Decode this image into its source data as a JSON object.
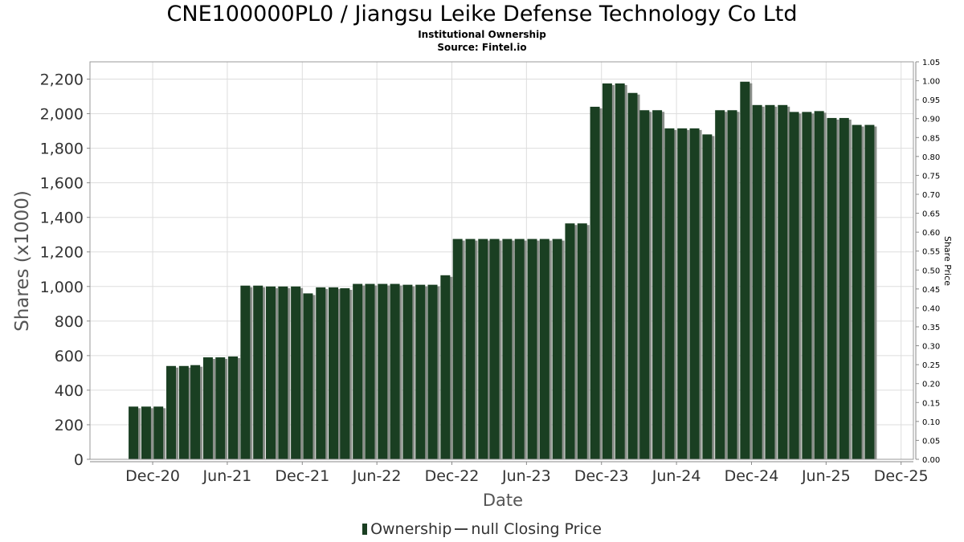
{
  "chart_data": {
    "type": "bar",
    "title": "CNE100000PL0 / Jiangsu Leike Defense Technology Co Ltd",
    "subtitle": [
      "Institutional Ownership",
      "Source: Fintel.io"
    ],
    "xlabel": "Date",
    "ylabel": "Shares (x1000)",
    "y2label": "Share Price",
    "ylim": [
      0,
      2300
    ],
    "y2lim": [
      0,
      1.05
    ],
    "yticks": [
      0,
      200,
      400,
      600,
      800,
      1000,
      1200,
      1400,
      1600,
      1800,
      2000,
      2200
    ],
    "ytick_labels": [
      "0",
      "200",
      "400",
      "600",
      "800",
      "1,000",
      "1,200",
      "1,400",
      "1,600",
      "1,800",
      "2,000",
      "2,200"
    ],
    "y2ticks": [
      0,
      0.05,
      0.1,
      0.15,
      0.2,
      0.25,
      0.3,
      0.35,
      0.4,
      0.45,
      0.5,
      0.55,
      0.6,
      0.65,
      0.7,
      0.75,
      0.8,
      0.85,
      0.9,
      0.95,
      1.0,
      1.05
    ],
    "y2tick_labels": [
      "0.00",
      "0.05",
      "0.10",
      "0.15",
      "0.20",
      "0.25",
      "0.30",
      "0.35",
      "0.40",
      "0.45",
      "0.50",
      "0.55",
      "0.60",
      "0.65",
      "0.70",
      "0.75",
      "0.80",
      "0.85",
      "0.90",
      "0.95",
      "1.00",
      "1.05"
    ],
    "xrange": [
      "2020-07-01",
      "2025-12-31"
    ],
    "xticks": [
      "2020-12-01",
      "2021-06-01",
      "2021-12-01",
      "2022-06-01",
      "2022-12-01",
      "2023-06-01",
      "2023-12-01",
      "2024-06-01",
      "2024-12-01",
      "2025-06-01",
      "2025-12-01"
    ],
    "xtick_labels": [
      "Dec-20",
      "Jun-21",
      "Dec-21",
      "Jun-22",
      "Dec-22",
      "Jun-23",
      "Dec-23",
      "Jun-24",
      "Dec-24",
      "Jun-25",
      "Dec-25"
    ],
    "grid": true,
    "legend_position": "bottom",
    "legend": [
      "Ownership",
      "null Closing Price"
    ],
    "series": [
      {
        "name": "Ownership",
        "color": "#1a3f22",
        "dates": [
          "2020-10-15",
          "2020-11-15",
          "2020-12-15",
          "2021-01-15",
          "2021-02-15",
          "2021-03-15",
          "2021-04-15",
          "2021-05-15",
          "2021-06-15",
          "2021-07-15",
          "2021-08-15",
          "2021-09-15",
          "2021-10-15",
          "2021-11-15",
          "2021-12-15",
          "2022-01-15",
          "2022-02-15",
          "2022-03-15",
          "2022-04-15",
          "2022-05-15",
          "2022-06-15",
          "2022-07-15",
          "2022-08-15",
          "2022-09-15",
          "2022-10-15",
          "2022-11-15",
          "2022-12-15",
          "2023-01-15",
          "2023-02-15",
          "2023-03-15",
          "2023-04-15",
          "2023-05-15",
          "2023-06-15",
          "2023-07-15",
          "2023-08-15",
          "2023-09-15",
          "2023-10-15",
          "2023-11-15",
          "2023-12-15",
          "2024-01-15",
          "2024-02-15",
          "2024-03-15",
          "2024-04-15",
          "2024-05-15",
          "2024-06-15",
          "2024-07-15",
          "2024-08-15",
          "2024-09-15",
          "2024-10-15",
          "2024-11-15",
          "2024-12-15",
          "2025-01-15",
          "2025-02-15",
          "2025-03-15",
          "2025-04-15",
          "2025-05-15",
          "2025-06-15",
          "2025-07-15",
          "2025-08-15",
          "2025-09-15"
        ],
        "values": [
          305,
          305,
          305,
          540,
          540,
          545,
          590,
          590,
          595,
          1005,
          1005,
          1000,
          1000,
          1000,
          960,
          995,
          995,
          990,
          1015,
          1015,
          1015,
          1015,
          1010,
          1010,
          1010,
          1065,
          1275,
          1275,
          1275,
          1275,
          1275,
          1275,
          1275,
          1275,
          1275,
          1365,
          1365,
          2040,
          2175,
          2175,
          2120,
          2020,
          2020,
          1915,
          1915,
          1915,
          1880,
          2020,
          2020,
          2185,
          2050,
          2050,
          2050,
          2010,
          2010,
          2015,
          1975,
          1975,
          1935,
          1935
        ]
      }
    ]
  }
}
